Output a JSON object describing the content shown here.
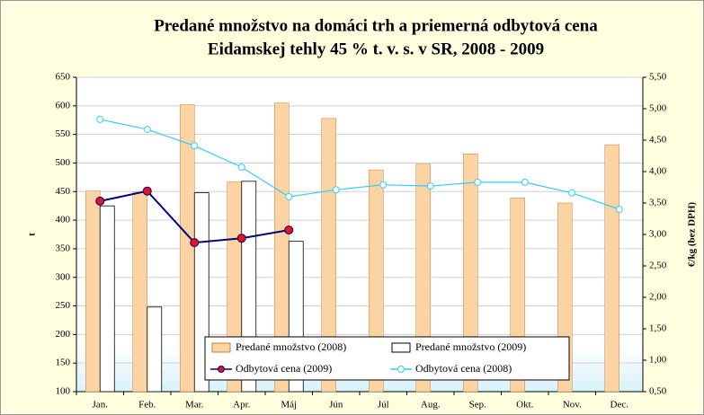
{
  "chart_data": {
    "type": "bar_line",
    "title": [
      "Predané množstvo na domáci trh a priemerná odbytová cena",
      "Eidamskej tehly 45 % t. v. s. v SR, 2008 - 2009"
    ],
    "ylabel": "t",
    "y2label": "€/kg (bez DPH)",
    "categories": [
      "Jan.",
      "Feb.",
      "Mar.",
      "Apr.",
      "Máj",
      "Jún",
      "Júl",
      "Aug.",
      "Sep.",
      "Okt.",
      "Nov.",
      "Dec."
    ],
    "series": [
      {
        "name": "Predané množstvo (2008)",
        "kind": "bar",
        "color": "#fcd3a2",
        "values": [
          451,
          449,
          602,
          467,
          605,
          578,
          488,
          498,
          516,
          439,
          430,
          532
        ]
      },
      {
        "name": "Predané množstvo (2009)",
        "kind": "bar",
        "color": "#ffffff",
        "values": [
          425,
          248,
          448,
          468,
          363,
          null,
          null,
          null,
          null,
          null,
          null,
          null
        ]
      },
      {
        "name": "Odbytová cena (2009)",
        "kind": "line",
        "axis": "y2",
        "color": "#000080",
        "marker_color": "#e8141c",
        "values": [
          3.53,
          3.69,
          2.87,
          2.94,
          3.07,
          null,
          null,
          null,
          null,
          null,
          null,
          null
        ]
      },
      {
        "name": "Odbytová cena (2008)",
        "kind": "line",
        "axis": "y2",
        "color": "#33ccff",
        "marker_color": "#ffffff",
        "values": [
          4.83,
          4.67,
          4.41,
          4.07,
          3.6,
          3.71,
          3.79,
          3.77,
          3.83,
          3.83,
          3.66,
          3.4
        ]
      }
    ],
    "ylim": [
      100,
      650
    ],
    "yticks": [
      100,
      150,
      200,
      250,
      300,
      350,
      400,
      450,
      500,
      550,
      600,
      650
    ],
    "y2lim": [
      0.5,
      5.5
    ],
    "y2ticks": [
      {
        "value": 0.5,
        "label": "0,50"
      },
      {
        "value": 1,
        "label": "1,00"
      },
      {
        "value": 1.5,
        "label": "1,50"
      },
      {
        "value": 2,
        "label": "2,00"
      },
      {
        "value": 2.5,
        "label": "2,50"
      },
      {
        "value": 3,
        "label": "3,00"
      },
      {
        "value": 3.5,
        "label": "3,50"
      },
      {
        "value": 4,
        "label": "4,00"
      },
      {
        "value": 4.5,
        "label": "4,50"
      },
      {
        "value": 5,
        "label": "5,00"
      },
      {
        "value": 5.5,
        "label": "5,50"
      }
    ],
    "grid": true
  }
}
